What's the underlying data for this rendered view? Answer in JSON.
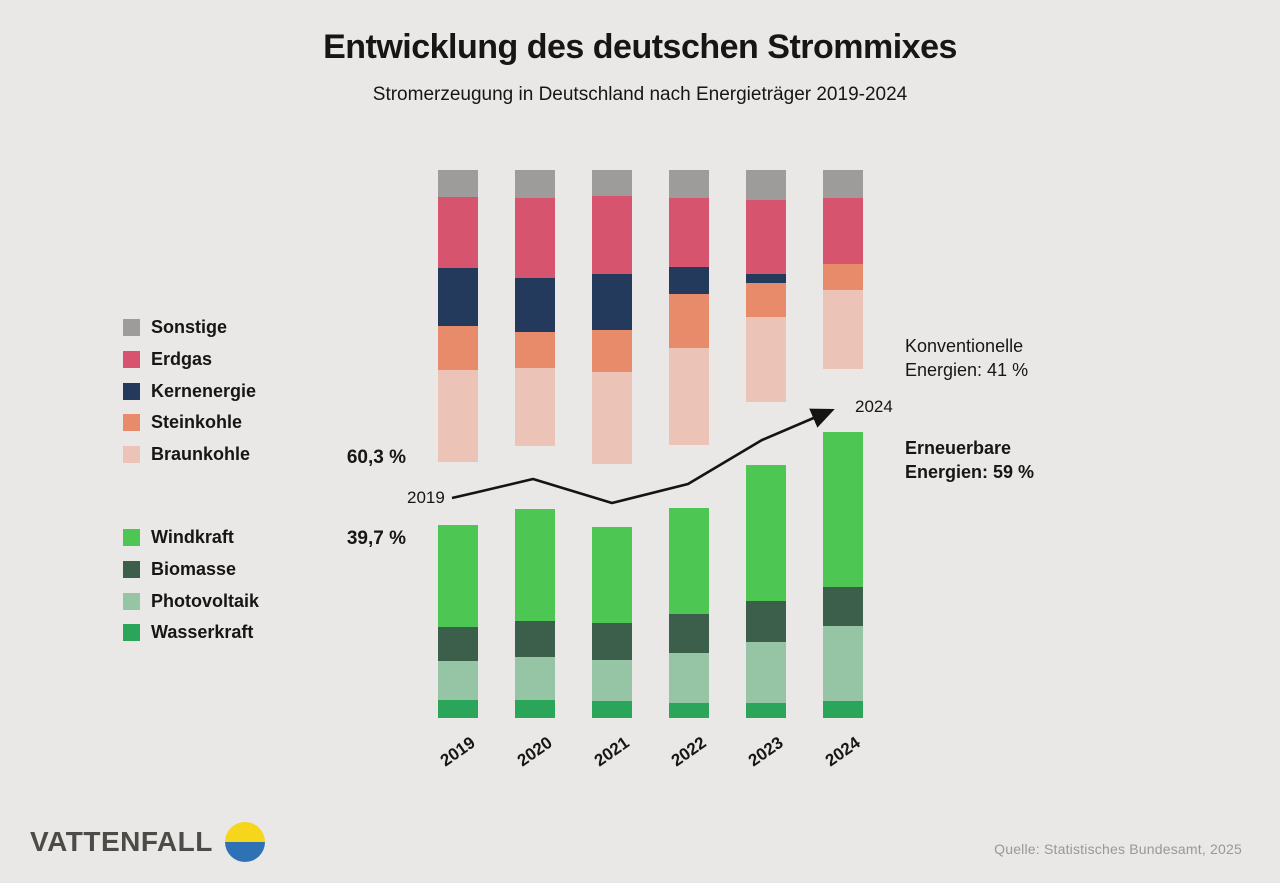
{
  "header": {
    "title": "Entwicklung des deutschen Strommixes",
    "subtitle": "Stromerzeugung in Deutschland nach Energieträger 2019-2024"
  },
  "colors": {
    "background": "#e9e8e6",
    "sonstige": "#9d9c9b",
    "erdgas": "#d6546e",
    "kernenergie": "#233a5c",
    "steinkohle": "#e78b6b",
    "braunkohle": "#ecc3b7",
    "windkraft": "#4ec654",
    "biomasse": "#3b5f4a",
    "photovoltaik": "#96c5a5",
    "wasserkraft": "#2ba55a",
    "arrow": "#141414",
    "logo_yellow": "#f5d61a",
    "logo_blue": "#2e72b5"
  },
  "legend": {
    "conventional": [
      {
        "label": "Sonstige",
        "color_key": "sonstige"
      },
      {
        "label": "Erdgas",
        "color_key": "erdgas"
      },
      {
        "label": "Kernenergie",
        "color_key": "kernenergie"
      },
      {
        "label": "Steinkohle",
        "color_key": "steinkohle"
      },
      {
        "label": "Braunkohle",
        "color_key": "braunkohle"
      }
    ],
    "renewable": [
      {
        "label": "Windkraft",
        "color_key": "windkraft"
      },
      {
        "label": "Biomasse",
        "color_key": "biomasse"
      },
      {
        "label": "Photovoltaik",
        "color_key": "photovoltaik"
      },
      {
        "label": "Wasserkraft",
        "color_key": "wasserkraft"
      }
    ]
  },
  "annotations": {
    "conventional_share_2019": "60,3 %",
    "renewable_share_2019": "39,7 %",
    "arrow_start_label": "2019",
    "arrow_end_label": "2024",
    "conventional_callout_line1": "Konventionelle",
    "conventional_callout_line2": "Energien: 41 %",
    "renewable_callout_line1": "Erneuerbare",
    "renewable_callout_line2": "Energien: 59 %"
  },
  "chart_data": {
    "type": "bar",
    "stacked": true,
    "orientation": "vertical",
    "unit": "percent_of_generation",
    "categories": [
      "2019",
      "2020",
      "2021",
      "2022",
      "2023",
      "2024"
    ],
    "conventional_series": [
      {
        "name": "Sonstige",
        "color_key": "sonstige",
        "values": [
          5.5,
          5.7,
          5.4,
          5.8,
          6.2,
          5.7
        ]
      },
      {
        "name": "Erdgas",
        "color_key": "erdgas",
        "values": [
          14.7,
          16.5,
          16.0,
          14.1,
          15.3,
          13.6
        ]
      },
      {
        "name": "Kernenergie",
        "color_key": "kernenergie",
        "values": [
          11.9,
          11.3,
          11.5,
          5.7,
          1.7,
          0
        ]
      },
      {
        "name": "Steinkohle",
        "color_key": "steinkohle",
        "values": [
          9.2,
          7.3,
          8.7,
          11.2,
          7.2,
          5.5
        ]
      },
      {
        "name": "Braunkohle",
        "color_key": "braunkohle",
        "values": [
          19.0,
          16.2,
          19.1,
          20.0,
          17.4,
          16.2
        ]
      }
    ],
    "renewable_series": [
      {
        "name": "Windkraft",
        "color_key": "windkraft",
        "values": [
          21.0,
          23.0,
          19.8,
          21.7,
          28.0,
          32.0
        ]
      },
      {
        "name": "Biomasse",
        "color_key": "biomasse",
        "values": [
          7.0,
          7.4,
          7.5,
          8.0,
          8.6,
          8.0
        ]
      },
      {
        "name": "Photovoltaik",
        "color_key": "photovoltaik",
        "values": [
          8.0,
          8.9,
          8.5,
          10.5,
          12.6,
          15.5
        ]
      },
      {
        "name": "Wasserkraft",
        "color_key": "wasserkraft",
        "values": [
          3.7,
          3.7,
          3.5,
          3.0,
          3.0,
          3.5
        ]
      }
    ],
    "conventional_totals": [
      60.3,
      57.0,
      60.7,
      56.8,
      47.8,
      41.0
    ],
    "renewable_totals": [
      39.7,
      43.0,
      39.3,
      43.2,
      52.2,
      59.0
    ],
    "legend_position": "left",
    "grid": false
  },
  "footer": {
    "logo_text": "VATTENFALL",
    "source": "Quelle: Statistisches Bundesamt, 2025"
  }
}
